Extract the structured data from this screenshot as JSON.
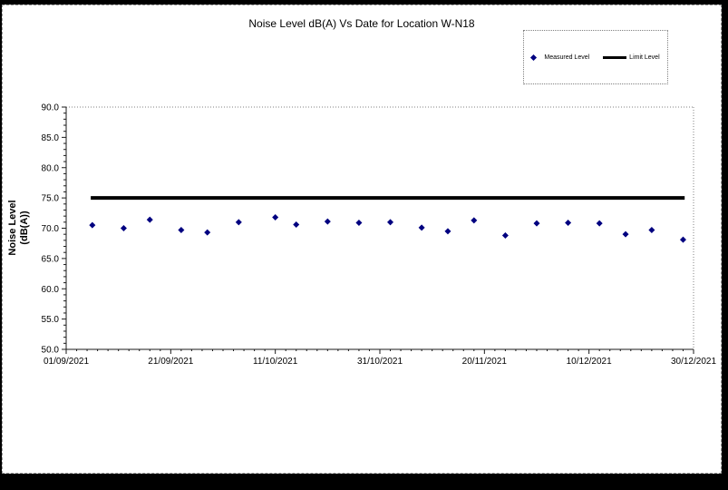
{
  "chart": {
    "y_axis_title_line1": "Noise Level",
    "y_axis_title_line2": "(dB(A))",
    "colors": {
      "marker": "#000080",
      "limit_line": "#000000",
      "axis": "#1a1a1a",
      "plot_border": "#808080",
      "background": "#ffffff",
      "outer_frame": "#000000"
    }
  },
  "chart_data": {
    "type": "scatter",
    "title": "Noise Level dB(A) Vs Date for Location W-N18",
    "xlabel": "",
    "ylabel": "Noise Level (dB(A))",
    "ylim": [
      50.0,
      90.0
    ],
    "y_tick_step": 5.0,
    "y_tick_labels": [
      "50.0",
      "55.0",
      "60.0",
      "65.0",
      "70.0",
      "75.0",
      "80.0",
      "85.0",
      "90.0"
    ],
    "x_range_days": [
      0,
      120
    ],
    "x_tick_interval_days": 20,
    "x_tick_labels": [
      "01/09/2021",
      "21/09/2021",
      "11/10/2021",
      "31/10/2021",
      "20/11/2021",
      "10/12/2021",
      "30/12/2021"
    ],
    "grid": false,
    "legend_position": "top-right",
    "series": [
      {
        "name": "Measured Level",
        "type": "scatter",
        "marker": "diamond",
        "color": "#000080",
        "points": [
          {
            "date": "06/09/2021",
            "day": 5,
            "value": 70.5
          },
          {
            "date": "12/09/2021",
            "day": 11,
            "value": 70.0
          },
          {
            "date": "17/09/2021",
            "day": 16,
            "value": 71.4
          },
          {
            "date": "23/09/2021",
            "day": 22,
            "value": 69.7
          },
          {
            "date": "28/09/2021",
            "day": 27,
            "value": 69.3
          },
          {
            "date": "04/10/2021",
            "day": 33,
            "value": 71.0
          },
          {
            "date": "11/10/2021",
            "day": 40,
            "value": 71.8
          },
          {
            "date": "15/10/2021",
            "day": 44,
            "value": 70.6
          },
          {
            "date": "21/10/2021",
            "day": 50,
            "value": 71.1
          },
          {
            "date": "27/10/2021",
            "day": 56,
            "value": 70.9
          },
          {
            "date": "02/11/2021",
            "day": 62,
            "value": 71.0
          },
          {
            "date": "08/11/2021",
            "day": 68,
            "value": 70.1
          },
          {
            "date": "13/11/2021",
            "day": 73,
            "value": 69.5
          },
          {
            "date": "18/11/2021",
            "day": 78,
            "value": 71.3
          },
          {
            "date": "24/11/2021",
            "day": 84,
            "value": 68.8
          },
          {
            "date": "30/11/2021",
            "day": 90,
            "value": 70.8
          },
          {
            "date": "06/12/2021",
            "day": 96,
            "value": 70.9
          },
          {
            "date": "12/12/2021",
            "day": 102,
            "value": 70.8
          },
          {
            "date": "17/12/2021",
            "day": 107,
            "value": 69.0
          },
          {
            "date": "22/12/2021",
            "day": 112,
            "value": 69.7
          },
          {
            "date": "28/12/2021",
            "day": 118,
            "value": 68.1
          }
        ]
      },
      {
        "name": "Limit Level",
        "type": "line",
        "color": "#000000",
        "value": 75.0,
        "span_days": [
          4.7,
          118.3
        ]
      }
    ]
  }
}
